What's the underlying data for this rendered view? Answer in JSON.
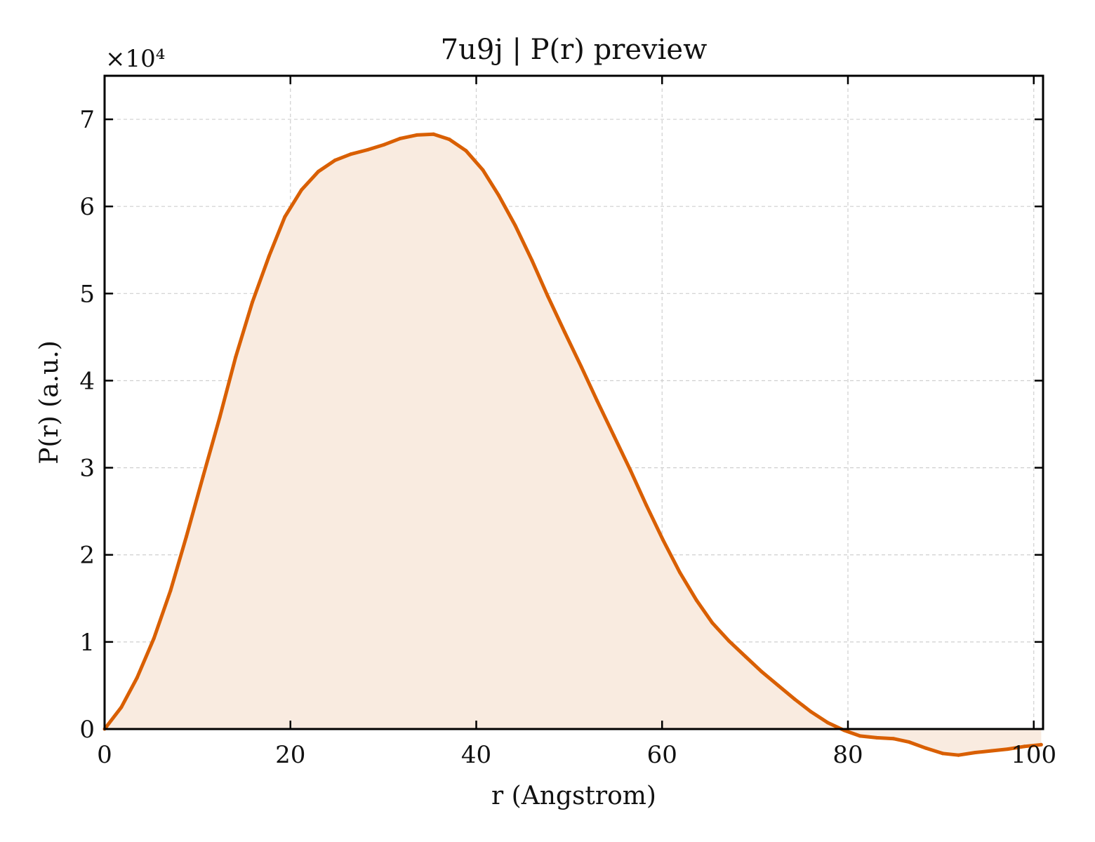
{
  "chart_data": {
    "type": "area",
    "title": "7u9j | P(r) preview",
    "xlabel": "r (Angstrom)",
    "ylabel": "P(r) (a.u.)",
    "y_multiplier_label": "×10⁴",
    "xlim": [
      0,
      101
    ],
    "ylim": [
      0,
      75000
    ],
    "xticks": [
      "0",
      "20",
      "40",
      "60",
      "80",
      "100"
    ],
    "yticks": [
      "0",
      "1",
      "2",
      "3",
      "4",
      "5",
      "6",
      "7"
    ],
    "grid": true,
    "line_color": "#d95f02",
    "fill_color": "#f9ebe0",
    "series": [
      {
        "x": [
          0,
          1.8,
          3.5,
          5.3,
          7.1,
          8.8,
          10.6,
          12.4,
          14.1,
          15.9,
          17.7,
          19.4,
          21.2,
          23.0,
          24.8,
          26.5,
          28.3,
          30.1,
          31.8,
          33.6,
          35.4,
          37.1,
          38.9,
          40.7,
          42.4,
          44.2,
          46.0,
          47.7,
          49.5,
          51.3,
          53.0,
          54.8,
          56.6,
          58.3,
          60.1,
          61.9,
          63.7,
          65.4,
          67.2,
          69.0,
          70.7,
          72.5,
          74.3,
          76.0,
          77.8,
          79.6,
          81.3,
          83.1,
          84.9,
          86.6,
          88.4,
          90.2,
          91.9,
          93.7,
          95.5,
          97.2,
          99.0,
          100.8
        ],
        "y": [
          0,
          2500,
          5900,
          10400,
          15900,
          22100,
          29000,
          35800,
          42700,
          49000,
          54300,
          58800,
          61900,
          64000,
          65300,
          66000,
          66500,
          67100,
          67800,
          68200,
          68300,
          67700,
          66400,
          64200,
          61300,
          57800,
          53800,
          49700,
          45600,
          41600,
          37700,
          33700,
          29700,
          25700,
          21700,
          18000,
          14800,
          12200,
          10100,
          8300,
          6600,
          5000,
          3400,
          2000,
          750,
          -150,
          -800,
          -1000,
          -1100,
          -1500,
          -2200,
          -2800,
          -3000,
          -2700,
          -2500,
          -2300,
          -2000,
          -1800
        ]
      }
    ]
  }
}
